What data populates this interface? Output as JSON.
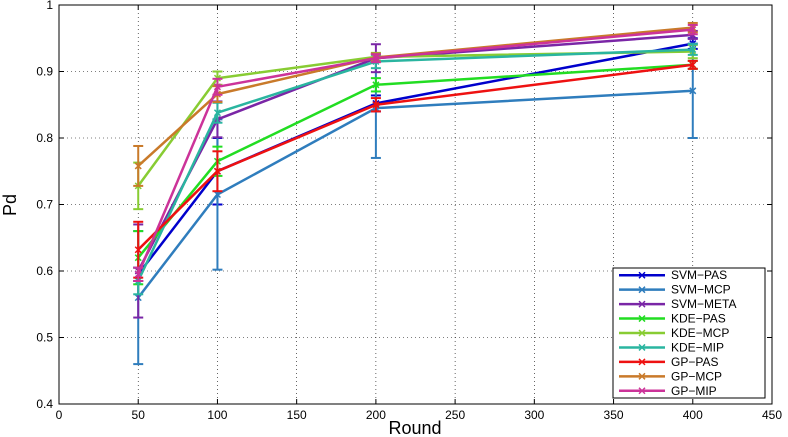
{
  "chart_data": {
    "type": "line",
    "title": "",
    "xlabel": "Round",
    "ylabel": "Pd",
    "xlim": [
      0,
      450
    ],
    "ylim": [
      0.4,
      1.0
    ],
    "xticks": [
      0,
      50,
      100,
      150,
      200,
      250,
      300,
      350,
      400,
      450
    ],
    "yticks": [
      0.4,
      0.5,
      0.6,
      0.7,
      0.8,
      0.9,
      1.0
    ],
    "xtick_labels": [
      "0",
      "50",
      "100",
      "150",
      "200",
      "250",
      "300",
      "350",
      "400",
      "450"
    ],
    "ytick_labels": [
      "0.4",
      "0.5",
      "0.6",
      "0.7",
      "0.8",
      "0.9",
      "1"
    ],
    "grid": true,
    "legend_position": "bottom-right",
    "x": [
      50,
      100,
      200,
      400
    ],
    "series": [
      {
        "name": "SVM−PAS",
        "color": "#0000cc",
        "values": [
          0.595,
          0.75,
          0.852,
          0.942
        ],
        "err": [
          0.01,
          0.05,
          0.012,
          0.008
        ]
      },
      {
        "name": "SVM−MCP",
        "color": "#2f7dbd",
        "values": [
          0.56,
          0.715,
          0.845,
          0.871
        ],
        "err": [
          0.1,
          0.113,
          0.075,
          0.071
        ]
      },
      {
        "name": "SVM−META",
        "color": "#7a26a6",
        "values": [
          0.6,
          0.828,
          0.92,
          0.955
        ],
        "err": [
          0.07,
          0.027,
          0.021,
          0.006
        ]
      },
      {
        "name": "KDE−PAS",
        "color": "#22dd22",
        "values": [
          0.62,
          0.765,
          0.88,
          0.91
        ],
        "err": [
          0.04,
          0.022,
          0.01,
          0.006
        ]
      },
      {
        "name": "KDE−MCP",
        "color": "#88cc33",
        "values": [
          0.728,
          0.89,
          0.922,
          0.93
        ],
        "err": [
          0.035,
          0.01,
          0.006,
          0.01
        ]
      },
      {
        "name": "KDE−MIP",
        "color": "#2ab5a0",
        "values": [
          0.585,
          0.838,
          0.915,
          0.933
        ],
        "err": [
          0.02,
          0.015,
          0.01,
          0.008
        ]
      },
      {
        "name": "GP−PAS",
        "color": "#ee1111",
        "values": [
          0.632,
          0.75,
          0.85,
          0.91
        ],
        "err": [
          0.042,
          0.03,
          0.01,
          0.006
        ]
      },
      {
        "name": "GP−MCP",
        "color": "#c97a2a",
        "values": [
          0.758,
          0.866,
          0.921,
          0.966
        ],
        "err": [
          0.03,
          0.012,
          0.006,
          0.007
        ]
      },
      {
        "name": "GP−MIP",
        "color": "#cc3399",
        "values": [
          0.595,
          0.877,
          0.92,
          0.963
        ],
        "err": [
          0.01,
          0.012,
          0.006,
          0.007
        ]
      }
    ]
  }
}
